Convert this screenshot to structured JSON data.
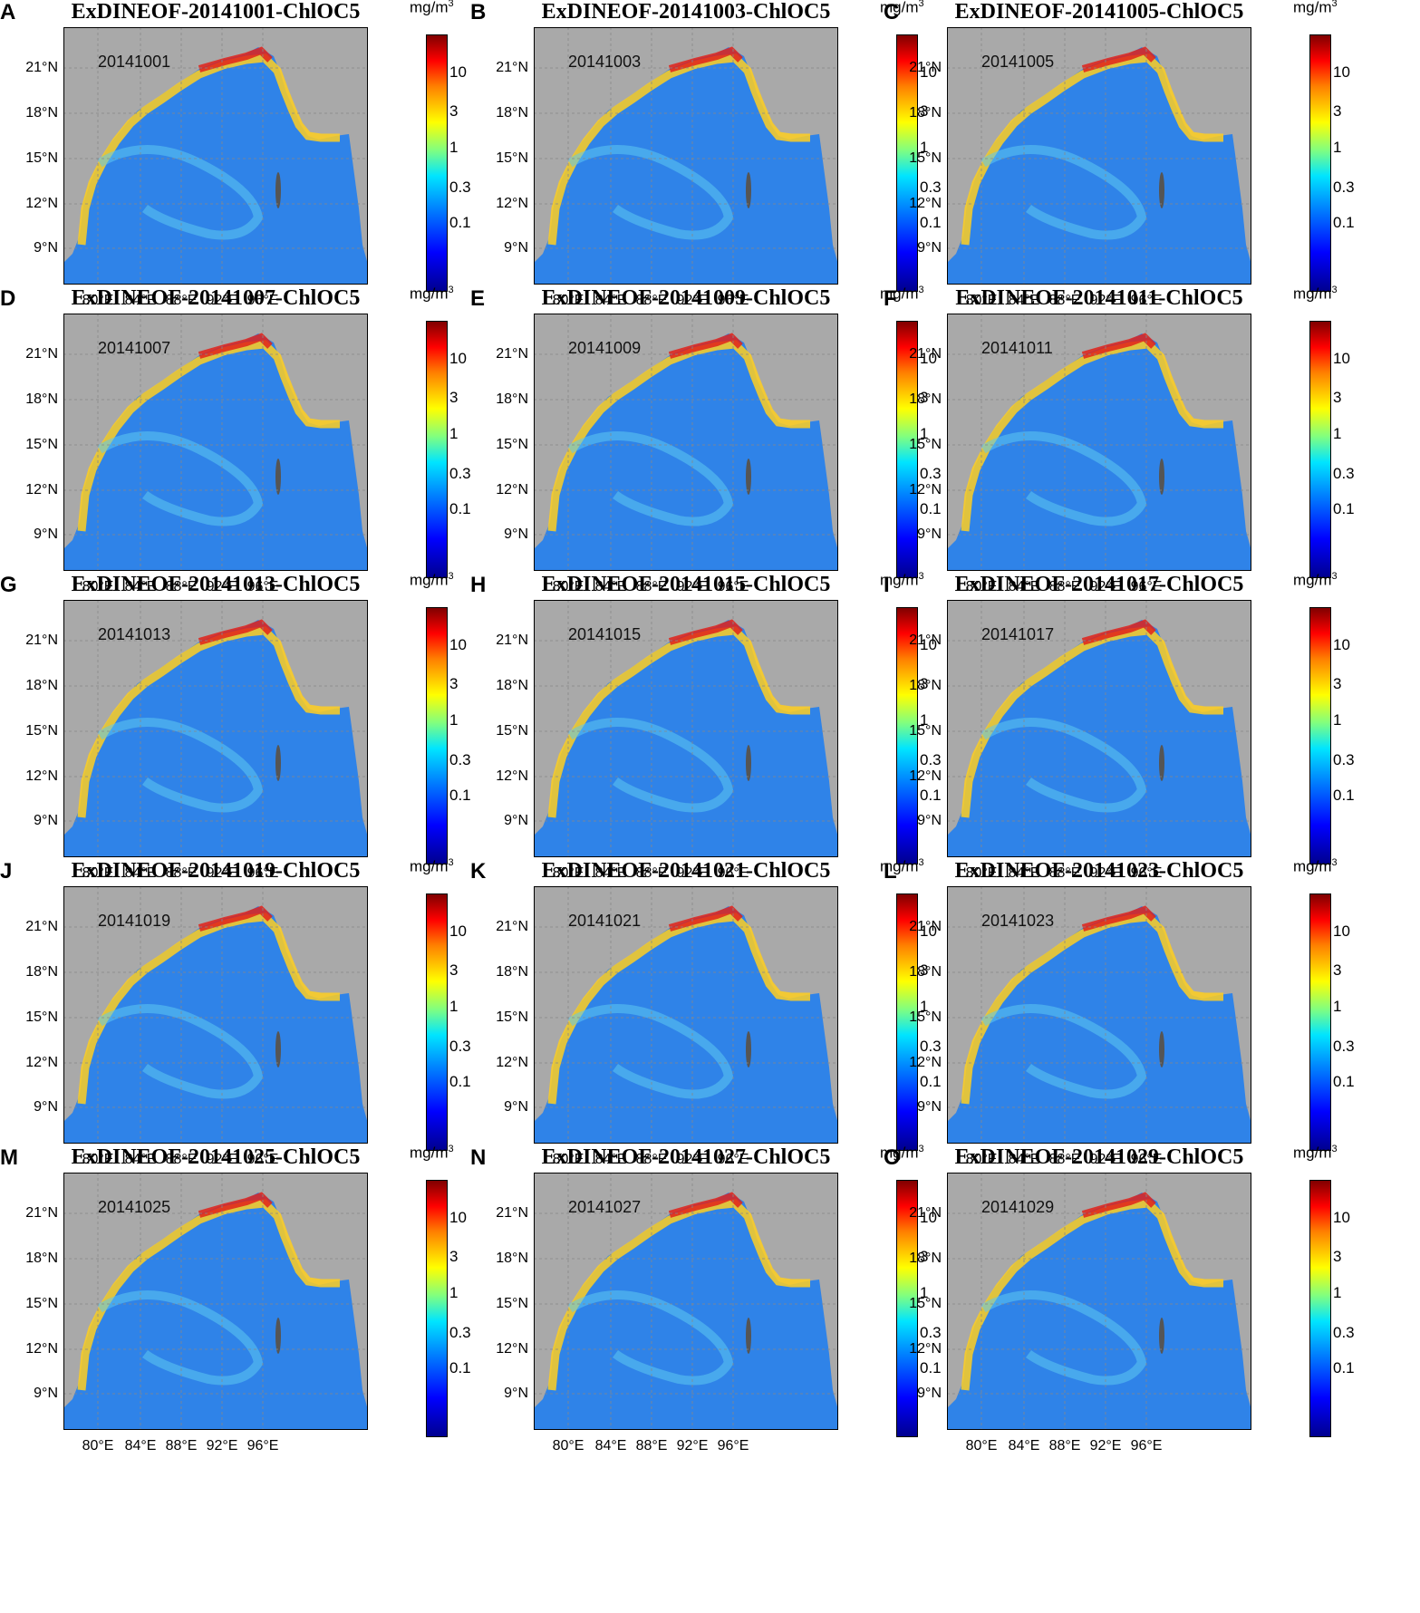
{
  "units": "mg/m",
  "unit_exponent": "3",
  "colorbar_ticks": [
    {
      "label": "10",
      "value": 10
    },
    {
      "label": "3",
      "value": 3
    },
    {
      "label": "1",
      "value": 1
    },
    {
      "label": "0.3",
      "value": 0.3
    },
    {
      "label": "0.1",
      "value": 0.1
    }
  ],
  "lat_labels": [
    "21°N",
    "18°N",
    "15°N",
    "12°N",
    "9°N"
  ],
  "lon_labels": [
    "80°E",
    "84°E",
    "88°E",
    "92°E",
    "96°E"
  ],
  "colors": {
    "land": "#a9a9a9",
    "ocean": "#2f83e8",
    "coastal": "#ffcf20",
    "high": "#e0221a"
  },
  "panels": [
    {
      "letter": "A",
      "title": "ExDINEOF-20141001-ChlOC5",
      "date": "20141001"
    },
    {
      "letter": "B",
      "title": "ExDINEOF-20141003-ChlOC5",
      "date": "20141003"
    },
    {
      "letter": "C",
      "title": "ExDINEOF-20141005-ChlOC5",
      "date": "20141005"
    },
    {
      "letter": "D",
      "title": "ExDINEOF-20141007-ChlOC5",
      "date": "20141007"
    },
    {
      "letter": "E",
      "title": "ExDINEOF-20141009-ChlOC5",
      "date": "20141009"
    },
    {
      "letter": "F",
      "title": "ExDINEOF-20141011-ChlOC5",
      "date": "20141011"
    },
    {
      "letter": "G",
      "title": "ExDINEOF-20141013-ChlOC5",
      "date": "20141013"
    },
    {
      "letter": "H",
      "title": "ExDINEOF-20141015-ChlOC5",
      "date": "20141015"
    },
    {
      "letter": "I",
      "title": "ExDINEOF-20141017-ChlOC5",
      "date": "20141017"
    },
    {
      "letter": "J",
      "title": "ExDINEOF-20141019-ChlOC5",
      "date": "20141019"
    },
    {
      "letter": "K",
      "title": "ExDINEOF-20141021-ChlOC5",
      "date": "20141021"
    },
    {
      "letter": "L",
      "title": "ExDINEOF-20141023-ChlOC5",
      "date": "20141023"
    },
    {
      "letter": "M",
      "title": "ExDINEOF-20141025-ChlOC5",
      "date": "20141025"
    },
    {
      "letter": "N",
      "title": "ExDINEOF-20141027-ChlOC5",
      "date": "20141027"
    },
    {
      "letter": "O",
      "title": "ExDINEOF-20141029-ChlOC5",
      "date": "20141029"
    }
  ]
}
